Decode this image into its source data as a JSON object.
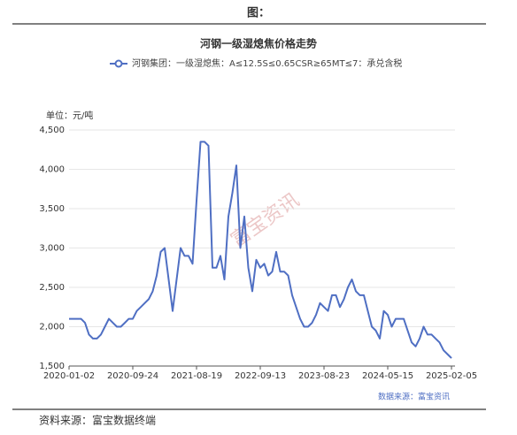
{
  "header": {
    "title": "图："
  },
  "footer": {
    "source": "资料来源：富宝数据终端"
  },
  "chart_data": {
    "type": "line",
    "title": "河钢一级湿熄焦价格走势",
    "unit_label": "单位：元/吨",
    "source_note": "数据来源：富宝资讯",
    "watermark": "富宝资讯",
    "categories": [
      "2020-01-02",
      null,
      null,
      null,
      null,
      null,
      null,
      null,
      null,
      null,
      null,
      null,
      null,
      null,
      null,
      null,
      "2020-09-24",
      null,
      null,
      null,
      null,
      null,
      null,
      null,
      null,
      null,
      null,
      null,
      null,
      null,
      null,
      null,
      "2021-08-19",
      null,
      null,
      null,
      null,
      null,
      null,
      null,
      null,
      null,
      null,
      null,
      null,
      null,
      null,
      null,
      "2022-09-13",
      null,
      null,
      null,
      null,
      null,
      null,
      null,
      null,
      null,
      null,
      null,
      null,
      null,
      null,
      null,
      "2023-08-23",
      null,
      null,
      null,
      null,
      null,
      null,
      null,
      null,
      null,
      null,
      null,
      null,
      null,
      null,
      null,
      "2024-05-15",
      null,
      null,
      null,
      null,
      null,
      null,
      null,
      null,
      null,
      null,
      null,
      null,
      null,
      null,
      null,
      "2025-02-05"
    ],
    "series": [
      {
        "name": "河钢集团：一级湿熄焦：A≤12.5S≤0.65CSR≥65MT≤7：承兑含税",
        "color": "#4f6fc3",
        "values": [
          2100,
          2100,
          2100,
          2100,
          2050,
          1900,
          1850,
          1850,
          1900,
          2000,
          2100,
          2050,
          2000,
          2000,
          2050,
          2100,
          2100,
          2200,
          2250,
          2300,
          2350,
          2450,
          2650,
          2950,
          3000,
          2600,
          2200,
          2600,
          3000,
          2900,
          2900,
          2800,
          3600,
          4350,
          4350,
          4300,
          2750,
          2750,
          2900,
          2600,
          3400,
          3700,
          4050,
          3000,
          3400,
          2750,
          2450,
          2850,
          2750,
          2800,
          2650,
          2700,
          2950,
          2700,
          2700,
          2650,
          2400,
          2250,
          2100,
          2000,
          2000,
          2050,
          2150,
          2300,
          2250,
          2200,
          2400,
          2400,
          2250,
          2350,
          2500,
          2600,
          2450,
          2400,
          2400,
          2200,
          2000,
          1950,
          1850,
          2200,
          2150,
          2000,
          2100,
          2100,
          2100,
          1950,
          1800,
          1750,
          1850,
          2000,
          1900,
          1900,
          1850,
          1800,
          1700,
          1650,
          1600
        ]
      }
    ],
    "ylim": [
      1500,
      4500
    ],
    "yticks": [
      {
        "value": 1500,
        "label": "1,500"
      },
      {
        "value": 2000,
        "label": "2,000"
      },
      {
        "value": 2500,
        "label": "2,500"
      },
      {
        "value": 3000,
        "label": "3,000"
      },
      {
        "value": 3500,
        "label": "3,500"
      },
      {
        "value": 4000,
        "label": "4,000"
      },
      {
        "value": 4500,
        "label": "4,500"
      }
    ],
    "grid": true
  }
}
